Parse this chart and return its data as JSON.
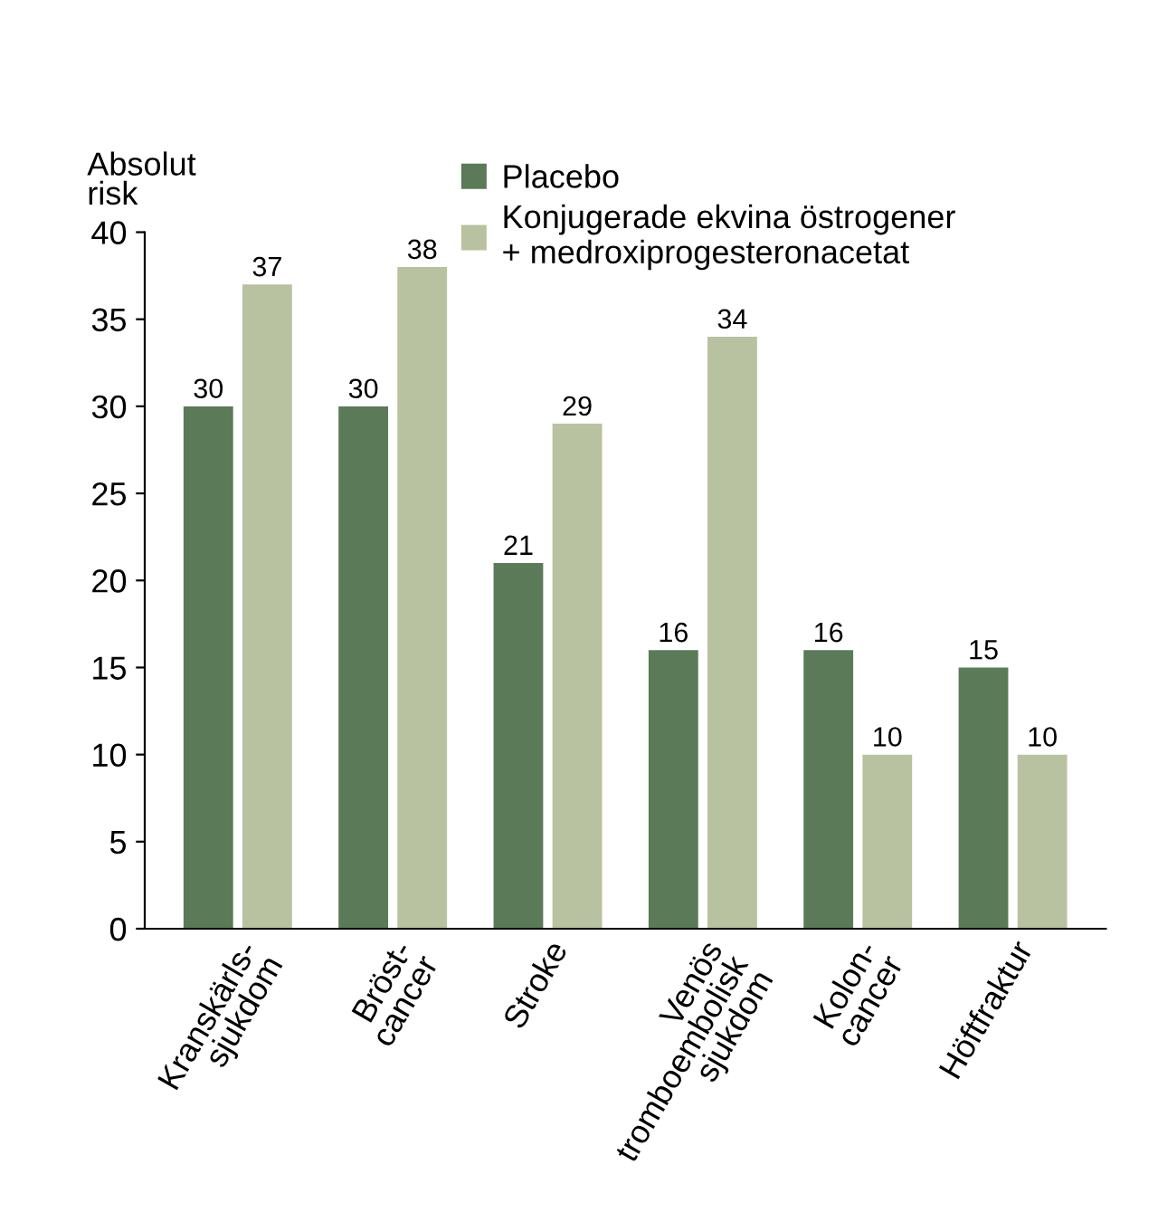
{
  "chart_data": {
    "type": "bar",
    "ylabel": "Absolut\nrisk",
    "categories": [
      "Kranskärls-\nsjukdom",
      "Bröst-\ncancer",
      "Stroke",
      "Venös\ntromboembolisk\nsjukdom",
      "Kolon-\ncancer",
      "Höftfraktur"
    ],
    "series": [
      {
        "name": "Placebo",
        "color": "#5b7a57",
        "values": [
          30,
          30,
          21,
          16,
          16,
          15
        ]
      },
      {
        "name": "Konjugerade ekvina östrogener\n+ medroxiprogesteronacetat",
        "color": "#b9c2a0",
        "values": [
          37,
          38,
          29,
          34,
          10,
          10
        ]
      }
    ],
    "ylim": [
      0,
      40
    ],
    "yticks": [
      0,
      5,
      10,
      15,
      20,
      25,
      30,
      35,
      40
    ],
    "data_labels": true,
    "legend": "top",
    "grid": false
  }
}
